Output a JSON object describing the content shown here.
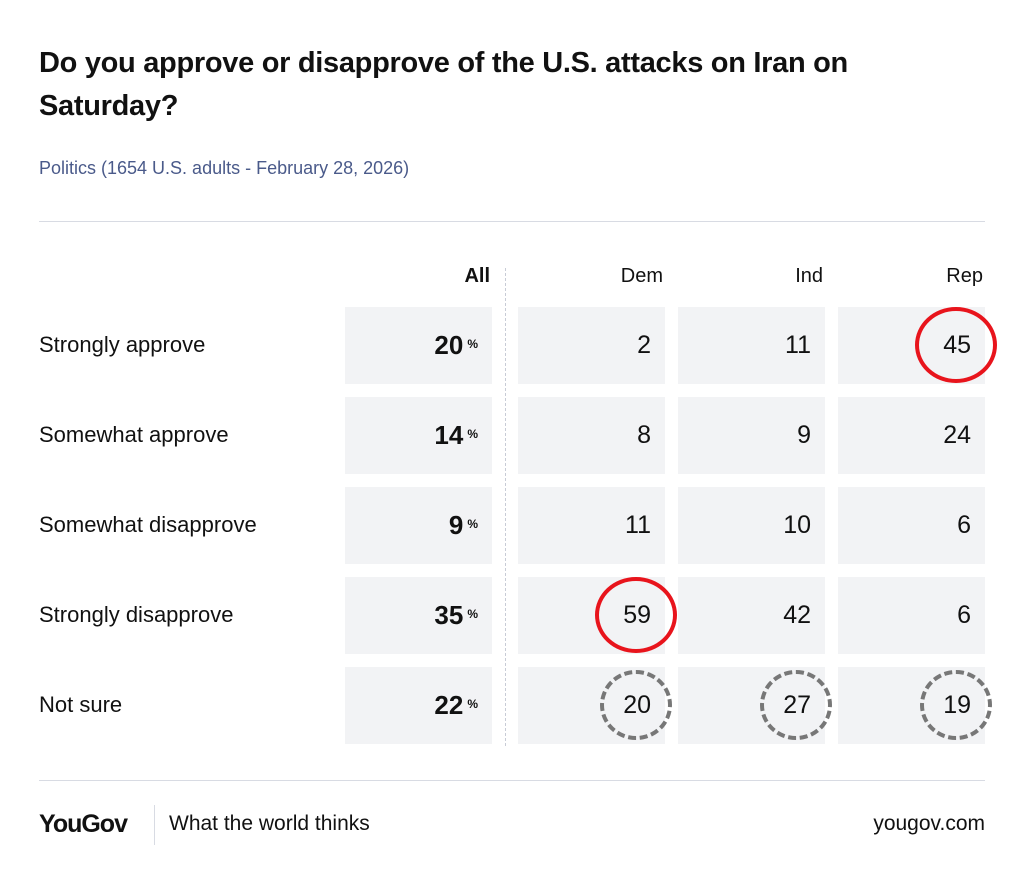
{
  "title": "Do you approve or disapprove of the U.S. attacks on Iran on Saturday?",
  "subtitle": "Politics (1654 U.S. adults - February 28, 2026)",
  "footer": {
    "logo": "YouGov",
    "tagline": "What the world thinks",
    "url": "yougov.com"
  },
  "chart_data": {
    "type": "table",
    "title": "Do you approve or disapprove of the U.S. attacks on Iran on Saturday?",
    "columns": [
      "All",
      "Dem",
      "Ind",
      "Rep"
    ],
    "percent_sign": "%",
    "rows": [
      {
        "label": "Strongly approve",
        "values": [
          20,
          2,
          11,
          45
        ],
        "highlights": [
          null,
          null,
          null,
          "solid"
        ]
      },
      {
        "label": "Somewhat approve",
        "values": [
          14,
          8,
          9,
          24
        ],
        "highlights": [
          null,
          null,
          null,
          null
        ]
      },
      {
        "label": "Somewhat disapprove",
        "values": [
          9,
          11,
          10,
          6
        ],
        "highlights": [
          null,
          null,
          null,
          null
        ]
      },
      {
        "label": "Strongly disapprove",
        "values": [
          35,
          59,
          42,
          6
        ],
        "highlights": [
          null,
          "solid",
          null,
          null
        ]
      },
      {
        "label": "Not sure",
        "values": [
          22,
          20,
          27,
          19
        ],
        "highlights": [
          null,
          "dashed",
          "dashed",
          "dashed"
        ]
      }
    ],
    "colors": {
      "highlight_solid": "#e8141c",
      "highlight_dashed": "#777777",
      "cell_bg": "#f2f3f5"
    }
  }
}
